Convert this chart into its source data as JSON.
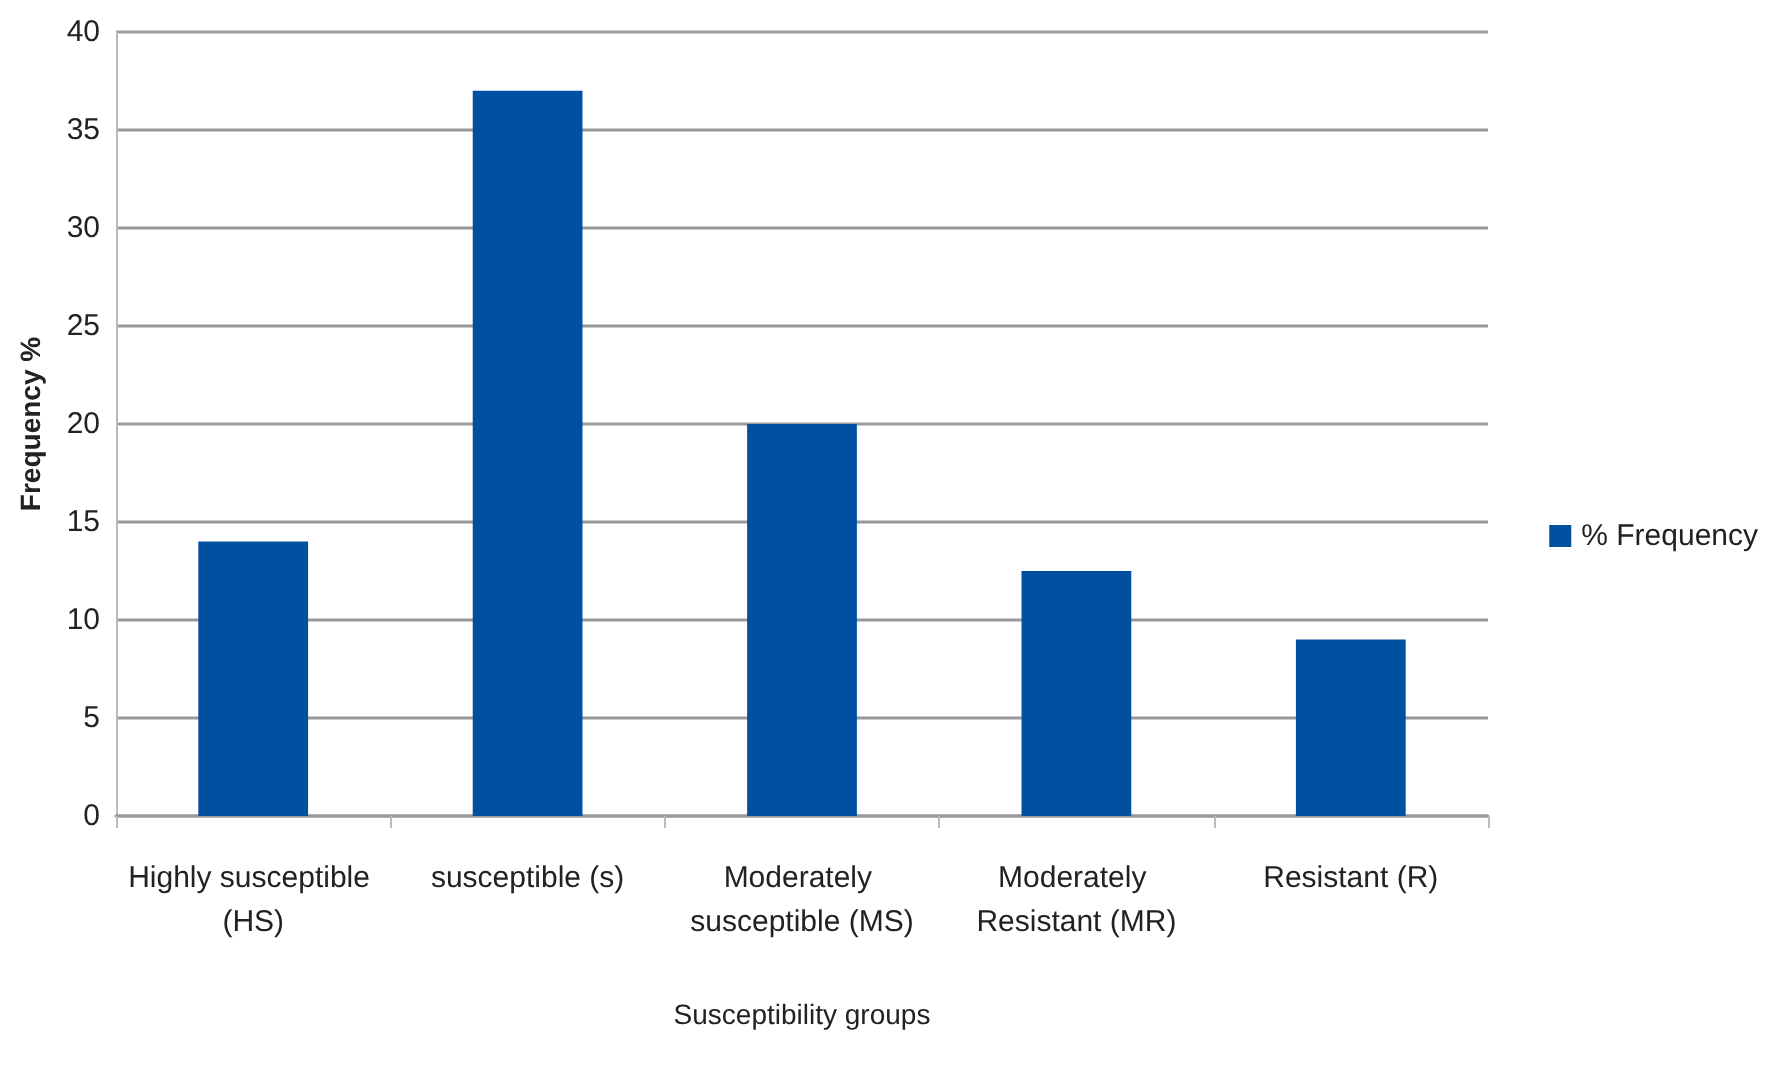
{
  "chart_data": {
    "type": "bar",
    "xlabel": "Susceptibility groups",
    "ylabel": "Frequency %",
    "categories": [
      "Highly susceptible (HS)",
      "susceptible (s)",
      "Moderately susceptible (MS)",
      "Moderately Resistant (MR)",
      "Resistant (R)"
    ],
    "series": [
      {
        "name": "% Frequency",
        "color": "#0050a2",
        "values": [
          14,
          37,
          20,
          12.5,
          9
        ]
      }
    ],
    "ylim": [
      0,
      40
    ],
    "yticks": [
      0,
      5,
      10,
      15,
      20,
      25,
      30,
      35,
      40
    ],
    "grid": "y",
    "legend": "right"
  }
}
